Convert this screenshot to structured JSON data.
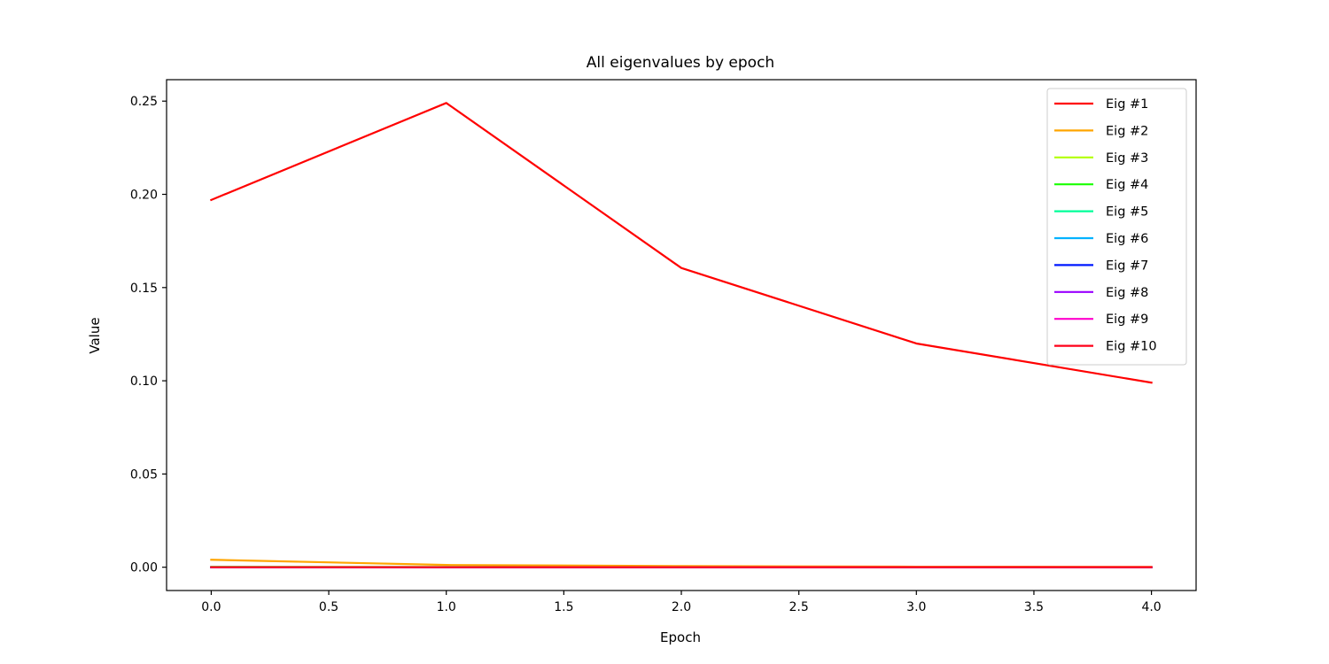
{
  "chart_data": {
    "type": "line",
    "title": "All eigenvalues by epoch",
    "xlabel": "Epoch",
    "ylabel": "Value",
    "xlim": [
      -0.19,
      4.19
    ],
    "ylim": [
      -0.0125,
      0.2615
    ],
    "xticks": [
      0.0,
      0.5,
      1.0,
      1.5,
      2.0,
      2.5,
      3.0,
      3.5,
      4.0
    ],
    "xtick_labels": [
      "0.0",
      "0.5",
      "1.0",
      "1.5",
      "2.0",
      "2.5",
      "3.0",
      "3.5",
      "4.0"
    ],
    "yticks": [
      0.0,
      0.05,
      0.1,
      0.15,
      0.2,
      0.25
    ],
    "ytick_labels": [
      "0.00",
      "0.05",
      "0.10",
      "0.15",
      "0.20",
      "0.25"
    ],
    "grid": false,
    "legend_position": "top-right",
    "x": [
      0,
      1,
      2,
      3,
      4
    ],
    "series": [
      {
        "name": "Eig #1",
        "color": "#ff0000",
        "values": [
          0.197,
          0.249,
          0.1605,
          0.12,
          0.099
        ]
      },
      {
        "name": "Eig #2",
        "color": "#ffa500",
        "values": [
          0.004,
          0.0012,
          0.0006,
          0.0003,
          0.0002
        ]
      },
      {
        "name": "Eig #3",
        "color": "#b2ff00",
        "values": [
          0.0002,
          0.0001,
          0.0001,
          0.0,
          0.0
        ]
      },
      {
        "name": "Eig #4",
        "color": "#19ff00",
        "values": [
          0.0001,
          0.0001,
          0.0,
          0.0,
          0.0
        ]
      },
      {
        "name": "Eig #5",
        "color": "#00ff99",
        "values": [
          0.0001,
          0.0,
          0.0,
          0.0,
          0.0
        ]
      },
      {
        "name": "Eig #6",
        "color": "#00b2ff",
        "values": [
          0.0,
          0.0,
          0.0,
          0.0,
          0.0
        ]
      },
      {
        "name": "Eig #7",
        "color": "#0019ff",
        "values": [
          0.0,
          0.0,
          0.0,
          0.0,
          0.0
        ]
      },
      {
        "name": "Eig #8",
        "color": "#9900ff",
        "values": [
          0.0,
          0.0,
          0.0,
          0.0,
          0.0
        ]
      },
      {
        "name": "Eig #9",
        "color": "#ff00cc",
        "values": [
          0.0,
          0.0,
          0.0,
          0.0,
          0.0
        ]
      },
      {
        "name": "Eig #10",
        "color": "#ff0019",
        "values": [
          0.0,
          0.0,
          0.0,
          0.0,
          0.0
        ]
      }
    ]
  }
}
